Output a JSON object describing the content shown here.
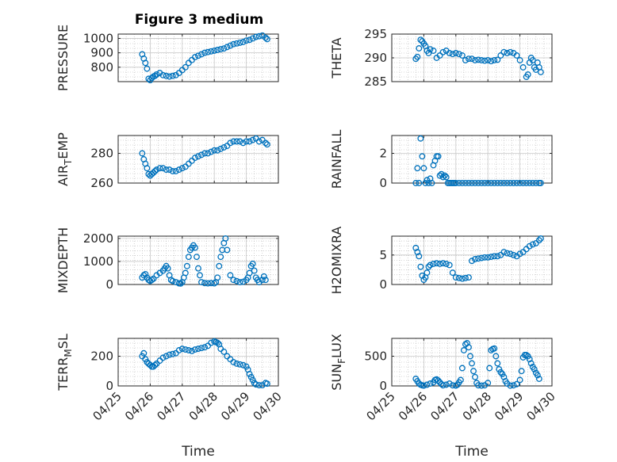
{
  "figure": {
    "title": "Figure 3 medium"
  },
  "chart_data": [
    {
      "type": "scatter",
      "id": "pressure",
      "ylabel": {
        "main": "PRESSURE",
        "sub": ""
      },
      "ylim": [
        700,
        1030
      ],
      "yticks": [
        800,
        900,
        1000
      ],
      "x": [
        25.75,
        25.8,
        25.85,
        25.9,
        25.95,
        26.0,
        26.05,
        26.1,
        26.15,
        26.2,
        26.3,
        26.4,
        26.5,
        26.6,
        26.7,
        26.8,
        26.9,
        27.0,
        27.1,
        27.2,
        27.3,
        27.4,
        27.5,
        27.6,
        27.7,
        27.8,
        27.9,
        28.0,
        28.1,
        28.2,
        28.3,
        28.4,
        28.5,
        28.6,
        28.7,
        28.8,
        28.9,
        29.0,
        29.1,
        29.2,
        29.3,
        29.4,
        29.5,
        29.6,
        29.65
      ],
      "y": [
        890,
        860,
        830,
        790,
        720,
        710,
        725,
        735,
        740,
        750,
        760,
        745,
        740,
        735,
        740,
        745,
        760,
        780,
        800,
        830,
        850,
        870,
        880,
        890,
        900,
        905,
        910,
        915,
        920,
        925,
        930,
        940,
        950,
        960,
        965,
        970,
        975,
        985,
        990,
        1000,
        1010,
        1015,
        1020,
        1005,
        995
      ]
    },
    {
      "type": "scatter",
      "id": "theta",
      "ylabel": {
        "main": "THETA",
        "sub": ""
      },
      "ylim": [
        285,
        295
      ],
      "yticks": [
        285,
        290,
        295
      ],
      "x": [
        25.75,
        25.8,
        25.85,
        25.9,
        25.95,
        26.0,
        26.05,
        26.1,
        26.15,
        26.2,
        26.3,
        26.4,
        26.5,
        26.6,
        26.7,
        26.8,
        26.9,
        27.0,
        27.1,
        27.2,
        27.3,
        27.4,
        27.5,
        27.6,
        27.7,
        27.8,
        27.9,
        28.0,
        28.1,
        28.2,
        28.3,
        28.4,
        28.5,
        28.6,
        28.7,
        28.8,
        28.9,
        29.0,
        29.1,
        29.2,
        29.25,
        29.3,
        29.35,
        29.4,
        29.45,
        29.5,
        29.55,
        29.6,
        29.65
      ],
      "y": [
        289.8,
        290.2,
        292,
        293.8,
        293.5,
        293,
        292.5,
        291.5,
        291,
        291.8,
        291.5,
        290,
        290.5,
        291.2,
        291.5,
        291,
        290.8,
        291,
        290.8,
        290.5,
        289.5,
        289.8,
        289.8,
        289.5,
        289.6,
        289.5,
        289.4,
        289.5,
        289.3,
        289.5,
        289.6,
        290.5,
        291.2,
        291,
        291.2,
        291,
        290.5,
        289.5,
        288,
        286,
        286.5,
        289,
        290,
        289.5,
        288,
        287.5,
        289,
        288,
        287
      ]
    },
    {
      "type": "scatter",
      "id": "air_temp",
      "ylabel": {
        "main": "AIR",
        "sub": "T",
        "rest": "EMP"
      },
      "ylim": [
        260,
        292
      ],
      "yticks": [
        260,
        280
      ],
      "x": [
        25.75,
        25.8,
        25.85,
        25.9,
        25.95,
        26.0,
        26.05,
        26.1,
        26.15,
        26.2,
        26.3,
        26.4,
        26.5,
        26.6,
        26.7,
        26.8,
        26.9,
        27.0,
        27.1,
        27.2,
        27.3,
        27.4,
        27.5,
        27.6,
        27.7,
        27.8,
        27.9,
        28.0,
        28.1,
        28.2,
        28.3,
        28.4,
        28.5,
        28.6,
        28.7,
        28.8,
        28.9,
        29.0,
        29.1,
        29.2,
        29.3,
        29.4,
        29.5,
        29.6,
        29.65
      ],
      "y": [
        280,
        276,
        273,
        270,
        266,
        265,
        266,
        267,
        268,
        269,
        270,
        270,
        269,
        269,
        268,
        268,
        269,
        270,
        271,
        273,
        275,
        277,
        278,
        279,
        280,
        280,
        281,
        282,
        282,
        283,
        284,
        285,
        287,
        288,
        288,
        288,
        287,
        288,
        288,
        289,
        290,
        288,
        289,
        287,
        286
      ]
    },
    {
      "type": "scatter",
      "id": "rainfall",
      "ylabel": {
        "main": "RAINFALL",
        "sub": ""
      },
      "ylim": [
        0,
        3.2
      ],
      "yticks": [
        0,
        2
      ],
      "x": [
        25.75,
        25.8,
        25.85,
        25.9,
        25.95,
        26.0,
        26.05,
        26.1,
        26.15,
        26.2,
        26.25,
        26.3,
        26.35,
        26.4,
        26.45,
        26.5,
        26.55,
        26.6,
        26.65,
        26.7,
        26.75,
        26.8,
        26.85,
        26.9,
        26.95,
        27.0,
        27.1,
        27.2,
        27.3,
        27.4,
        27.5,
        27.6,
        27.7,
        27.8,
        27.9,
        28.0,
        28.1,
        28.2,
        28.3,
        28.4,
        28.5,
        28.6,
        28.7,
        28.8,
        28.9,
        29.0,
        29.1,
        29.2,
        29.3,
        29.4,
        29.5,
        29.6,
        29.65
      ],
      "y": [
        0,
        1,
        0,
        3,
        1.8,
        1,
        0,
        0.2,
        0,
        0.3,
        0,
        1.2,
        1.5,
        1.8,
        1.8,
        0.5,
        0.6,
        0.4,
        0.5,
        0.4,
        0,
        0,
        0,
        0,
        0,
        0,
        0,
        0,
        0,
        0,
        0,
        0,
        0,
        0,
        0,
        0,
        0,
        0,
        0,
        0,
        0,
        0,
        0,
        0,
        0,
        0,
        0,
        0,
        0,
        0,
        0,
        0,
        0
      ]
    },
    {
      "type": "scatter",
      "id": "mixdepth",
      "ylabel": {
        "main": "MIXDEPTH",
        "sub": ""
      },
      "ylim": [
        0,
        2100
      ],
      "yticks": [
        0,
        1000,
        2000
      ],
      "x": [
        25.75,
        25.8,
        25.85,
        25.9,
        25.95,
        26.0,
        26.05,
        26.1,
        26.2,
        26.3,
        26.4,
        26.45,
        26.5,
        26.55,
        26.6,
        26.65,
        26.7,
        26.8,
        26.9,
        26.95,
        27.0,
        27.05,
        27.1,
        27.15,
        27.2,
        27.25,
        27.3,
        27.35,
        27.4,
        27.45,
        27.5,
        27.55,
        27.6,
        27.7,
        27.8,
        27.9,
        28.0,
        28.05,
        28.1,
        28.15,
        28.2,
        28.25,
        28.3,
        28.35,
        28.4,
        28.5,
        28.6,
        28.7,
        28.8,
        28.9,
        29.0,
        29.05,
        29.1,
        29.15,
        29.2,
        29.25,
        29.3,
        29.35,
        29.4,
        29.5,
        29.55,
        29.6
      ],
      "y": [
        300,
        400,
        450,
        300,
        200,
        150,
        200,
        250,
        400,
        500,
        600,
        700,
        800,
        700,
        400,
        200,
        150,
        100,
        50,
        40,
        100,
        300,
        500,
        800,
        1200,
        1500,
        1600,
        1700,
        1600,
        1200,
        700,
        400,
        100,
        60,
        50,
        60,
        50,
        100,
        300,
        800,
        1200,
        1500,
        1800,
        2000,
        1500,
        400,
        200,
        150,
        100,
        120,
        200,
        300,
        500,
        800,
        900,
        600,
        300,
        200,
        100,
        200,
        350,
        200
      ]
    },
    {
      "type": "scatter",
      "id": "h2omixra",
      "ylabel": {
        "main": "H2OMIXRA",
        "sub": ""
      },
      "ylim": [
        0,
        8.2
      ],
      "yticks": [
        0,
        5
      ],
      "x": [
        25.75,
        25.8,
        25.85,
        25.9,
        25.95,
        26.0,
        26.05,
        26.1,
        26.15,
        26.2,
        26.3,
        26.4,
        26.5,
        26.6,
        26.7,
        26.8,
        26.9,
        27.0,
        27.1,
        27.2,
        27.3,
        27.4,
        27.5,
        27.6,
        27.7,
        27.8,
        27.9,
        28.0,
        28.1,
        28.2,
        28.3,
        28.4,
        28.5,
        28.6,
        28.7,
        28.8,
        28.9,
        29.0,
        29.1,
        29.2,
        29.3,
        29.4,
        29.5,
        29.6,
        29.65
      ],
      "y": [
        6.2,
        5.5,
        4.8,
        3,
        1.5,
        0.8,
        1.2,
        2,
        3,
        3.3,
        3.5,
        3.6,
        3.5,
        3.6,
        3.5,
        3.3,
        2,
        1.2,
        1.1,
        1,
        1.1,
        1.2,
        4,
        4.3,
        4.4,
        4.5,
        4.6,
        4.6,
        4.7,
        4.8,
        4.8,
        5,
        5.5,
        5.3,
        5.2,
        5,
        4.8,
        5.2,
        5.5,
        6,
        6.5,
        6.8,
        7,
        7.5,
        7.8
      ]
    },
    {
      "type": "scatter",
      "id": "terr_msl",
      "ylabel": {
        "main": "TERR",
        "sub": "M",
        "rest": "SL"
      },
      "ylim": [
        0,
        320
      ],
      "yticks": [
        0,
        200
      ],
      "x": [
        25.75,
        25.8,
        25.85,
        25.9,
        25.95,
        26.0,
        26.05,
        26.1,
        26.15,
        26.2,
        26.3,
        26.4,
        26.5,
        26.6,
        26.7,
        26.8,
        26.9,
        27.0,
        27.1,
        27.2,
        27.3,
        27.4,
        27.5,
        27.6,
        27.7,
        27.8,
        27.9,
        28.0,
        28.05,
        28.1,
        28.15,
        28.2,
        28.3,
        28.4,
        28.5,
        28.6,
        28.7,
        28.8,
        28.9,
        29.0,
        29.05,
        29.1,
        29.15,
        29.2,
        29.25,
        29.3,
        29.4,
        29.5,
        29.6,
        29.65
      ],
      "y": [
        200,
        220,
        180,
        160,
        150,
        140,
        130,
        130,
        140,
        150,
        170,
        190,
        200,
        210,
        215,
        220,
        240,
        250,
        245,
        240,
        235,
        245,
        250,
        255,
        260,
        270,
        290,
        300,
        295,
        290,
        280,
        250,
        230,
        200,
        180,
        160,
        150,
        145,
        140,
        130,
        110,
        80,
        60,
        40,
        20,
        10,
        5,
        5,
        20,
        15
      ]
    },
    {
      "type": "scatter",
      "id": "sun_flux",
      "ylabel": {
        "main": "SUN",
        "sub": "F",
        "rest": "LUX"
      },
      "ylim": [
        0,
        800
      ],
      "yticks": [
        0,
        500
      ],
      "x": [
        25.75,
        25.8,
        25.85,
        25.9,
        25.95,
        26.0,
        26.1,
        26.2,
        26.3,
        26.35,
        26.4,
        26.45,
        26.5,
        26.55,
        26.6,
        26.7,
        26.8,
        26.9,
        27.0,
        27.05,
        27.1,
        27.15,
        27.2,
        27.25,
        27.3,
        27.35,
        27.4,
        27.45,
        27.5,
        27.55,
        27.6,
        27.65,
        27.7,
        27.8,
        27.9,
        28.0,
        28.05,
        28.1,
        28.15,
        28.2,
        28.25,
        28.3,
        28.35,
        28.4,
        28.45,
        28.5,
        28.55,
        28.6,
        28.7,
        28.8,
        28.9,
        29.0,
        29.05,
        29.1,
        29.15,
        29.2,
        29.25,
        29.3,
        29.35,
        29.4,
        29.45,
        29.5,
        29.55,
        29.6
      ],
      "y": [
        120,
        80,
        40,
        20,
        10,
        5,
        20,
        40,
        60,
        100,
        110,
        90,
        60,
        30,
        10,
        20,
        40,
        10,
        5,
        20,
        60,
        100,
        300,
        600,
        700,
        720,
        650,
        500,
        380,
        250,
        150,
        50,
        10,
        5,
        10,
        50,
        300,
        600,
        620,
        630,
        500,
        380,
        280,
        230,
        200,
        150,
        80,
        40,
        5,
        10,
        30,
        100,
        250,
        480,
        520,
        520,
        500,
        450,
        380,
        320,
        280,
        220,
        180,
        120
      ]
    }
  ],
  "x_axis": {
    "xlim": [
      25,
      30
    ],
    "ticks": [
      25,
      26,
      27,
      28,
      29,
      30
    ],
    "ticklabels": [
      "04/25",
      "04/26",
      "04/27",
      "04/28",
      "04/29",
      "04/30"
    ],
    "xlabel": "Time"
  },
  "colors": {
    "marker": "#0072BD",
    "axis": "#262626",
    "grid": "#b3b3b3"
  },
  "grid": true
}
